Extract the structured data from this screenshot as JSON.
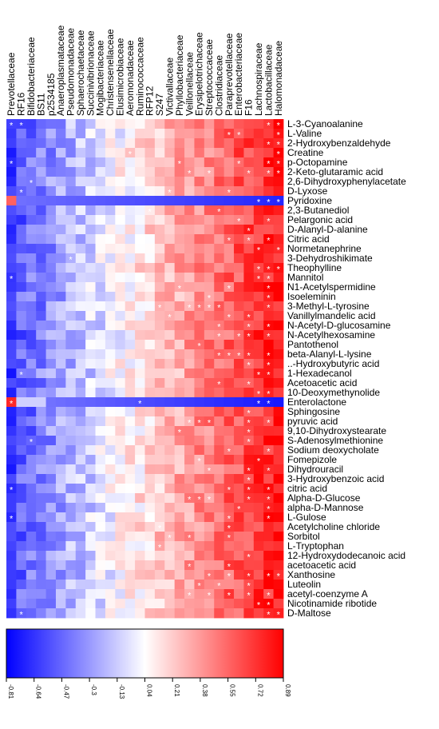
{
  "chart_data": {
    "type": "heatmap",
    "title": "",
    "columns": [
      "Prevotellaceae",
      "RF16",
      "Bifidobacteriaceae",
      "BS11",
      "p2534185",
      "Anaeroplasmataceae",
      "Pseudomonadaceae",
      "Sphaerochaetaceae",
      "Succinivibrionaceae",
      "Mogibacteriaceae",
      "Christensenellaceae",
      "Elusimicrobiaceae",
      "Aeromonadaceae",
      "Ruminococcaceae",
      "RFP12",
      "S247",
      "Victivallaceae",
      "Phyllobacteriaceae",
      "Veillonellaceae",
      "Erysipelotrichaceae",
      "Streptococcaceae",
      "Clostridiaceae",
      "Paraprevotellaceae",
      "Enterobacteriaceae",
      "F16",
      "Lachnospiraceae",
      "Lactobacillaceae",
      "Halomonadaceae"
    ],
    "rows": [
      "L-3-Cyanoalanine",
      "L-Valine",
      "2-Hydroxybenzaldehyde",
      "Creatine",
      "p-Octopamine",
      "2-Keto-glutaramic acid",
      "2,6-Dihydroxyphenylacetate",
      "D-Lyxose",
      "Pyridoxine",
      "2,3-Butanediol",
      "Pelargonic acid",
      "D-Alanyl-D-alanine",
      "Citric acid",
      "Normetanephrine",
      "3-Dehydroshikimate",
      "Theophylline",
      "Mannitol",
      "N1-Acetylspermidine",
      "Isoeleminin",
      "3-Methyl-L-tyrosine",
      "Vanillylmandelic acid",
      "N-Acetyl-D-glucosamine",
      "N-Acetylhexosamine",
      "Pantothenol",
      "beta-Alanyl-L-lysine",
      "..-Hydroxybutyric acid",
      "1-Hexadecanol",
      "Acetoacetic acid",
      "10-Deoxymethynolide",
      "Enterolactone",
      "Sphingosine",
      "pyruvic acid",
      "9,10-Dihydroxystearate",
      "S-Adenosylmethionine",
      "Sodium deoxycholate",
      "Fomepizole",
      "Dihydrouracil",
      "3-Hydroxybenzoic acid",
      "citric acid",
      "Alpha-D-Glucose",
      "alpha-D-Mannose",
      "L-Gulose",
      "Acetylcholine chloride",
      "Sorbitol",
      "L-Tryptophan",
      "12-Hydroxydodecanoic acid",
      "acetoacetic acid",
      "Xanthosine",
      "Luteolin",
      "acetyl-coenzyme A",
      "Nicotinamide ribotide",
      "D-Maltose"
    ],
    "colorbar": {
      "ticks": [
        "-0.81",
        "-0.64",
        "-0.47",
        "-0.3",
        "-0.13",
        "0.04",
        "0.21",
        "0.38",
        "0.55",
        "0.72",
        "0.89"
      ],
      "min": -0.81,
      "max": 0.89,
      "low_color": "#0000ff",
      "mid_color": "#ffffff",
      "high_color": "#ff0000"
    },
    "significance_marker": "*",
    "cell_values_note": "Correlation values estimated from colour; rows x columns."
  }
}
